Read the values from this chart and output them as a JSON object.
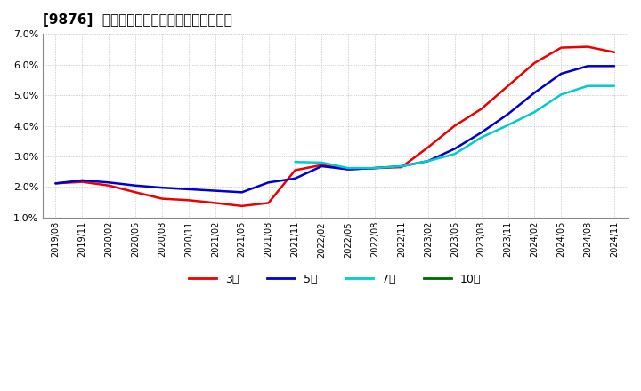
{
  "title": "[9876]  経常利益マージンの標準偏差の推移",
  "ylim": [
    0.01,
    0.07
  ],
  "yticks": [
    0.01,
    0.02,
    0.03,
    0.04,
    0.05,
    0.06,
    0.07
  ],
  "ytick_labels": [
    "1.0%",
    "2.0%",
    "3.0%",
    "4.0%",
    "5.0%",
    "6.0%",
    "7.0%"
  ],
  "background_color": "#ffffff",
  "plot_bg_color": "#ffffff",
  "grid_color": "#aaaaaa",
  "series_order": [
    "3年",
    "5年",
    "7年",
    "10年"
  ],
  "series": {
    "3年": {
      "color": "#ee0000",
      "data": [
        [
          "2019/08",
          0.0212
        ],
        [
          "2019/11",
          0.0217
        ],
        [
          "2020/02",
          0.0205
        ],
        [
          "2020/05",
          0.0183
        ],
        [
          "2020/08",
          0.0162
        ],
        [
          "2020/11",
          0.0157
        ],
        [
          "2021/02",
          0.0148
        ],
        [
          "2021/05",
          0.0138
        ],
        [
          "2021/08",
          0.0148
        ],
        [
          "2021/11",
          0.0255
        ],
        [
          "2022/02",
          0.0272
        ],
        [
          "2022/05",
          0.0258
        ],
        [
          "2022/08",
          0.0262
        ],
        [
          "2022/11",
          0.0265
        ],
        [
          "2023/02",
          0.033
        ],
        [
          "2023/05",
          0.04
        ],
        [
          "2023/08",
          0.0455
        ],
        [
          "2023/11",
          0.053
        ],
        [
          "2024/02",
          0.0605
        ],
        [
          "2024/05",
          0.0655
        ],
        [
          "2024/08",
          0.0658
        ],
        [
          "2024/11",
          0.064
        ]
      ]
    },
    "5年": {
      "color": "#0000cc",
      "data": [
        [
          "2019/08",
          0.0212
        ],
        [
          "2019/11",
          0.0222
        ],
        [
          "2020/02",
          0.0215
        ],
        [
          "2020/05",
          0.0205
        ],
        [
          "2020/08",
          0.0198
        ],
        [
          "2020/11",
          0.0193
        ],
        [
          "2021/02",
          0.0188
        ],
        [
          "2021/05",
          0.0183
        ],
        [
          "2021/08",
          0.0215
        ],
        [
          "2021/11",
          0.0228
        ],
        [
          "2022/02",
          0.0268
        ],
        [
          "2022/05",
          0.0258
        ],
        [
          "2022/08",
          0.0262
        ],
        [
          "2022/11",
          0.0268
        ],
        [
          "2023/02",
          0.0285
        ],
        [
          "2023/05",
          0.0325
        ],
        [
          "2023/08",
          0.0378
        ],
        [
          "2023/11",
          0.0438
        ],
        [
          "2024/02",
          0.0508
        ],
        [
          "2024/05",
          0.057
        ],
        [
          "2024/08",
          0.0595
        ],
        [
          "2024/11",
          0.0595
        ]
      ]
    },
    "7年": {
      "color": "#00cccc",
      "data": [
        [
          "2021/11",
          0.0282
        ],
        [
          "2022/02",
          0.028
        ],
        [
          "2022/05",
          0.0262
        ],
        [
          "2022/08",
          0.0262
        ],
        [
          "2022/11",
          0.0268
        ],
        [
          "2023/02",
          0.0285
        ],
        [
          "2023/05",
          0.0308
        ],
        [
          "2023/08",
          0.0362
        ],
        [
          "2023/11",
          0.0402
        ],
        [
          "2024/02",
          0.0445
        ],
        [
          "2024/05",
          0.0502
        ],
        [
          "2024/08",
          0.053
        ],
        [
          "2024/11",
          0.053
        ]
      ]
    },
    "10年": {
      "color": "#006600",
      "data": []
    }
  },
  "x_tick_labels": [
    "2019/08",
    "2019/11",
    "2020/02",
    "2020/05",
    "2020/08",
    "2020/11",
    "2021/02",
    "2021/05",
    "2021/08",
    "2021/11",
    "2022/02",
    "2022/05",
    "2022/08",
    "2022/11",
    "2023/02",
    "2023/05",
    "2023/08",
    "2023/11",
    "2024/02",
    "2024/05",
    "2024/08",
    "2024/11"
  ],
  "legend_labels": [
    "3年",
    "5年",
    "7年",
    "10年"
  ],
  "legend_colors": [
    "#ee0000",
    "#0000cc",
    "#00cccc",
    "#006600"
  ]
}
